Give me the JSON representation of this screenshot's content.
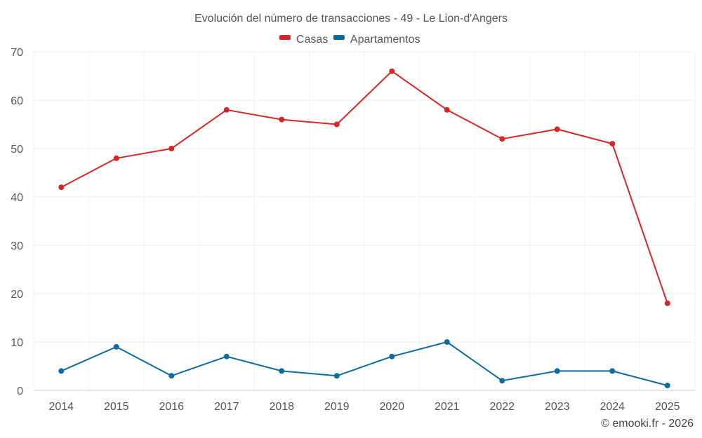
{
  "chart_data": {
    "type": "line",
    "title": "Evolución del número de transacciones - 49 - Le Lion-d'Angers",
    "categories": [
      "2014",
      "2015",
      "2016",
      "2017",
      "2018",
      "2019",
      "2020",
      "2021",
      "2022",
      "2023",
      "2024",
      "2025"
    ],
    "series": [
      {
        "name": "Casas",
        "color": "#d62728",
        "values": [
          42,
          48,
          50,
          58,
          56,
          55,
          66,
          58,
          52,
          54,
          51,
          18
        ]
      },
      {
        "name": "Apartamentos",
        "color": "#0f6b9c",
        "values": [
          4,
          9,
          3,
          7,
          4,
          3,
          7,
          10,
          2,
          4,
          4,
          1
        ]
      }
    ],
    "ylim": [
      0,
      70
    ],
    "yticks": [
      0,
      10,
      20,
      30,
      40,
      50,
      60,
      70
    ],
    "xlabel": "",
    "ylabel": "",
    "grid": true,
    "legend": "top-center"
  },
  "credit": "© emooki.fr - 2026"
}
